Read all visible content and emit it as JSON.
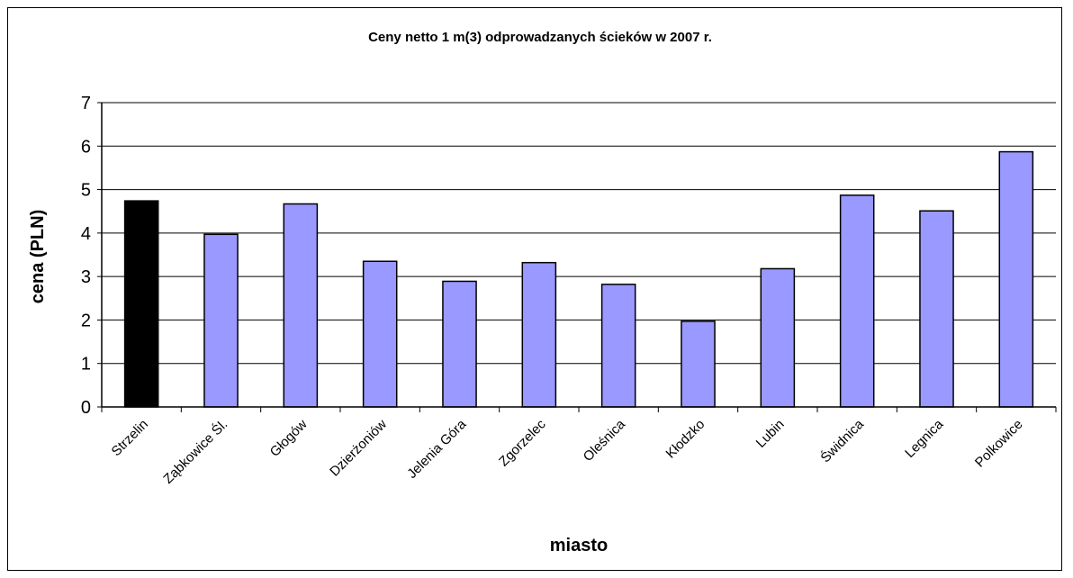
{
  "chart_data": {
    "type": "bar",
    "title": "Ceny netto 1 m(3) odprowadzanych ścieków w 2007 r.",
    "xlabel": "miasto",
    "ylabel": "cena (PLN)",
    "ylim": [
      0,
      7
    ],
    "yticks": [
      "0",
      "1",
      "2",
      "3",
      "4",
      "5",
      "6",
      "7"
    ],
    "grid": true,
    "legend": "none",
    "categories": [
      "Strzelin",
      "Ząbkowice Śl.",
      "Głogów",
      "Dzierżoniów",
      "Jelenia Góra",
      "Zgorzelec",
      "Oleśnica",
      "Kłodzko",
      "Lubin",
      "Świdnica",
      "Legnica",
      "Polkowice"
    ],
    "values": [
      4.74,
      3.97,
      4.67,
      3.35,
      2.89,
      3.32,
      2.82,
      1.97,
      3.18,
      4.87,
      4.51,
      5.87
    ],
    "colors": {
      "highlight": "#000000",
      "default": "#9999ff",
      "outline": "#000000",
      "grid": "#000000"
    },
    "highlight_index": 0
  }
}
